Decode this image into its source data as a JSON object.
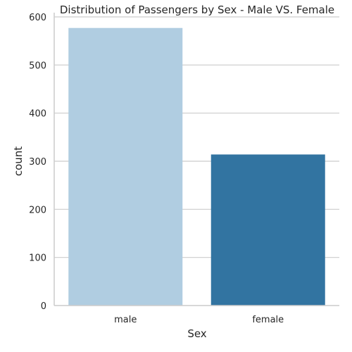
{
  "chart_data": {
    "type": "bar",
    "title": "Distribution of Passengers by Sex - Male VS. Female",
    "xlabel": "Sex",
    "ylabel": "count",
    "categories": [
      "male",
      "female"
    ],
    "values": [
      577,
      314
    ],
    "colors": [
      "#b0cde1",
      "#3274a1"
    ],
    "ylim": [
      0,
      600
    ],
    "yticks": [
      0,
      100,
      200,
      300,
      400,
      500,
      600
    ],
    "grid": "horizontal"
  }
}
